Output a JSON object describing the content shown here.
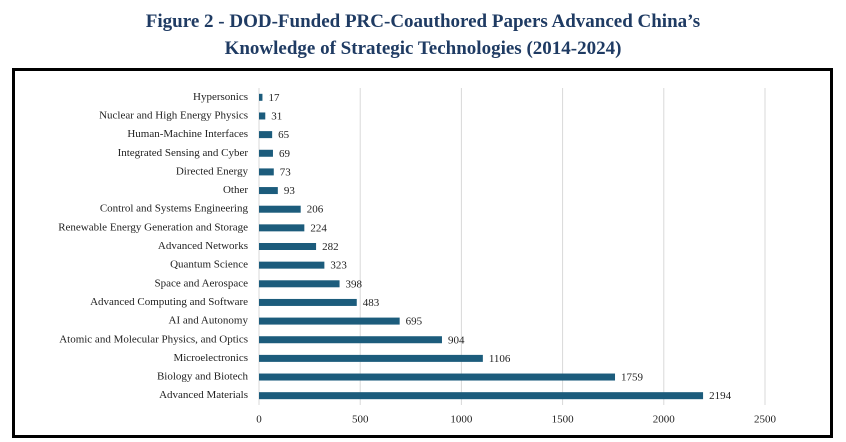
{
  "chart_data": {
    "type": "barh",
    "title": "Figure 2 - DOD-Funded PRC-Coauthored Papers Advanced China’s Knowledge of Strategic Technologies (2014-2024)",
    "categories": [
      "Hypersonics",
      "Nuclear and High Energy Physics",
      "Human-Machine Interfaces",
      "Integrated Sensing and Cyber",
      "Directed Energy",
      "Other",
      "Control and Systems Engineering",
      "Renewable Energy Generation and Storage",
      "Advanced Networks",
      "Quantum Science",
      "Space and Aerospace",
      "Advanced Computing and Software",
      "AI and Autonomy",
      "Atomic and Molecular Physics, and Optics",
      "Microelectronics",
      "Biology and Biotech",
      "Advanced Materials"
    ],
    "values": [
      17,
      31,
      65,
      69,
      73,
      93,
      206,
      224,
      282,
      323,
      398,
      483,
      695,
      904,
      1106,
      1759,
      2194
    ],
    "color": "#1c5c7c",
    "xlim": [
      0,
      2500
    ],
    "xticks": [
      0,
      500,
      1000,
      1500,
      2000,
      2500
    ],
    "grid": true
  }
}
